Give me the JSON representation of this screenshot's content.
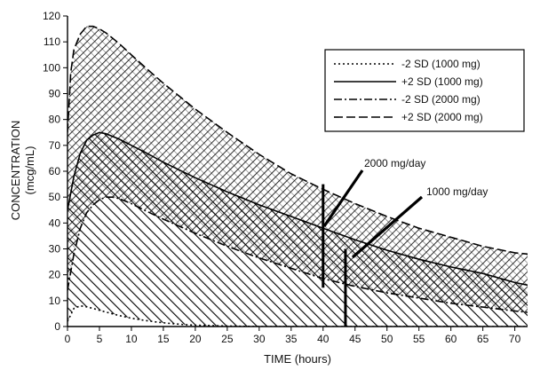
{
  "chart_data": {
    "type": "area",
    "title": "",
    "xlabel": "TIME (hours)",
    "ylabel": "CONCENTRATION",
    "ylabel_unit": "(mcg/mL)",
    "xlim": [
      0,
      72
    ],
    "ylim": [
      0,
      120
    ],
    "xticks": [
      0,
      5,
      10,
      15,
      20,
      25,
      30,
      35,
      40,
      45,
      50,
      55,
      60,
      65,
      70
    ],
    "yticks": [
      0,
      10,
      20,
      30,
      40,
      50,
      60,
      70,
      80,
      90,
      100,
      110,
      120
    ],
    "grid": false,
    "legend_position": "top-right",
    "series": [
      {
        "name": "-2 SD (1000 mg)",
        "linestyle": "dotted",
        "x": [
          0,
          1,
          2,
          3,
          4,
          6,
          8,
          10,
          12,
          14,
          16,
          18,
          20,
          25,
          30,
          35,
          40,
          45,
          50,
          55,
          60,
          65,
          70,
          72
        ],
        "y": [
          2,
          7,
          8,
          7.6,
          7,
          5.6,
          4.3,
          3.2,
          2.4,
          1.7,
          1.2,
          0.8,
          0.5,
          0.2,
          0,
          0,
          0,
          0,
          0,
          0,
          0,
          0,
          0,
          0
        ]
      },
      {
        "name": "+2 SD (1000 mg)",
        "linestyle": "solid",
        "x": [
          0,
          1,
          2,
          3,
          4,
          5,
          6,
          8,
          10,
          12,
          15,
          20,
          25,
          30,
          35,
          40,
          45,
          50,
          55,
          60,
          65,
          70,
          72
        ],
        "y": [
          45,
          58,
          67,
          72,
          74,
          75,
          74.5,
          72.5,
          70,
          67.5,
          63.5,
          57.5,
          52,
          47,
          42.5,
          38,
          33.5,
          29.5,
          26,
          23,
          20.5,
          17,
          16
        ]
      },
      {
        "name": "-2 SD (2000 mg)",
        "linestyle": "dash-dot",
        "x": [
          0,
          1,
          2,
          3,
          4,
          5,
          6,
          7,
          8,
          10,
          12,
          15,
          20,
          25,
          30,
          35,
          40,
          45,
          50,
          55,
          60,
          65,
          70,
          72
        ],
        "y": [
          14,
          28,
          38,
          44,
          47,
          49,
          50,
          50,
          49.5,
          47.5,
          45,
          41.5,
          36,
          31,
          26.5,
          22.5,
          18.5,
          15.5,
          13,
          11,
          9,
          7.5,
          6,
          5.5
        ]
      },
      {
        "name": "+2 SD (2000 mg)",
        "linestyle": "dashed",
        "x": [
          0,
          0.5,
          1,
          2,
          3,
          4,
          5,
          6,
          8,
          10,
          12,
          15,
          20,
          25,
          30,
          35,
          40,
          45,
          50,
          55,
          60,
          65,
          70,
          72
        ],
        "y": [
          75,
          98,
          107,
          113,
          116,
          116,
          115,
          113.5,
          109.5,
          105,
          100.5,
          94,
          84,
          75,
          66.5,
          59,
          53,
          47.5,
          42.5,
          38,
          34.5,
          31,
          28.5,
          28
        ]
      }
    ],
    "annotations": [
      {
        "text": "2000 mg/day",
        "x": 40,
        "y_low": 15,
        "y_high": 55
      },
      {
        "text": "1000 mg/day",
        "x": 43.5,
        "y_low": 0,
        "y_high": 30
      }
    ]
  }
}
